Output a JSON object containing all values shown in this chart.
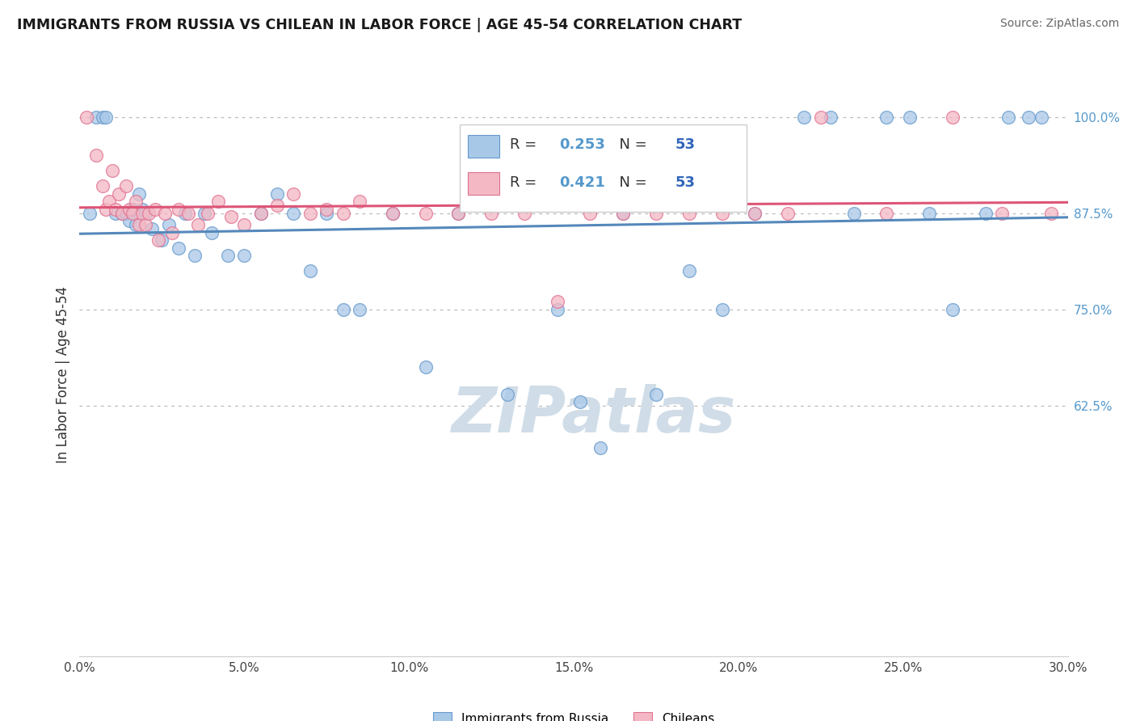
{
  "title": "IMMIGRANTS FROM RUSSIA VS CHILEAN IN LABOR FORCE | AGE 45-54 CORRELATION CHART",
  "source": "Source: ZipAtlas.com",
  "ylabel_label": "In Labor Force | Age 45-54",
  "legend_russia": "Immigrants from Russia",
  "legend_chilean": "Chileans",
  "r_russia": "0.253",
  "n_russia": "53",
  "r_chilean": "0.421",
  "n_chilean": "53",
  "color_russia_fill": "#a8c8e8",
  "color_chilean_fill": "#f4b8c4",
  "color_russia_edge": "#6699cc",
  "color_chilean_edge": "#e07090",
  "color_russia_line": "#5588bb",
  "color_chilean_line": "#dd5577",
  "color_r_text": "#5599cc",
  "color_n_text": "#3366bb",
  "watermark_color": "#d0dde8",
  "xmin": 0.0,
  "xmax": 30.0,
  "ymin": 30.0,
  "ymax": 103.0,
  "yticks": [
    62.5,
    75.0,
    87.5,
    100.0
  ],
  "xticks": [
    0,
    5,
    10,
    15,
    20,
    25,
    30
  ],
  "russia_points": [
    [
      0.3,
      87.5
    ],
    [
      0.5,
      100.0
    ],
    [
      0.7,
      100.0
    ],
    [
      0.8,
      100.0
    ],
    [
      1.1,
      87.5
    ],
    [
      1.3,
      87.5
    ],
    [
      1.4,
      87.5
    ],
    [
      1.5,
      86.5
    ],
    [
      1.6,
      88.0
    ],
    [
      1.7,
      86.0
    ],
    [
      1.8,
      90.0
    ],
    [
      1.9,
      88.0
    ],
    [
      2.0,
      87.5
    ],
    [
      2.2,
      85.5
    ],
    [
      2.5,
      84.0
    ],
    [
      2.7,
      86.0
    ],
    [
      3.0,
      83.0
    ],
    [
      3.2,
      87.5
    ],
    [
      3.5,
      82.0
    ],
    [
      3.8,
      87.5
    ],
    [
      4.0,
      85.0
    ],
    [
      4.5,
      82.0
    ],
    [
      5.0,
      82.0
    ],
    [
      5.5,
      87.5
    ],
    [
      6.0,
      90.0
    ],
    [
      6.5,
      87.5
    ],
    [
      7.0,
      80.0
    ],
    [
      7.5,
      87.5
    ],
    [
      8.0,
      75.0
    ],
    [
      8.5,
      75.0
    ],
    [
      9.5,
      87.5
    ],
    [
      10.5,
      67.5
    ],
    [
      11.5,
      87.5
    ],
    [
      13.0,
      64.0
    ],
    [
      14.5,
      75.0
    ],
    [
      15.2,
      63.0
    ],
    [
      15.8,
      57.0
    ],
    [
      16.5,
      87.5
    ],
    [
      17.5,
      64.0
    ],
    [
      18.5,
      80.0
    ],
    [
      19.5,
      75.0
    ],
    [
      20.5,
      87.5
    ],
    [
      22.0,
      100.0
    ],
    [
      22.8,
      100.0
    ],
    [
      23.5,
      87.5
    ],
    [
      24.5,
      100.0
    ],
    [
      25.2,
      100.0
    ],
    [
      25.8,
      87.5
    ],
    [
      26.5,
      75.0
    ],
    [
      27.5,
      87.5
    ],
    [
      28.2,
      100.0
    ],
    [
      28.8,
      100.0
    ],
    [
      29.2,
      100.0
    ]
  ],
  "chilean_points": [
    [
      0.2,
      100.0
    ],
    [
      0.5,
      95.0
    ],
    [
      0.7,
      91.0
    ],
    [
      0.8,
      88.0
    ],
    [
      0.9,
      89.0
    ],
    [
      1.0,
      93.0
    ],
    [
      1.1,
      88.0
    ],
    [
      1.2,
      90.0
    ],
    [
      1.3,
      87.5
    ],
    [
      1.4,
      91.0
    ],
    [
      1.5,
      88.0
    ],
    [
      1.6,
      87.5
    ],
    [
      1.7,
      89.0
    ],
    [
      1.8,
      86.0
    ],
    [
      1.9,
      87.5
    ],
    [
      2.0,
      86.0
    ],
    [
      2.1,
      87.5
    ],
    [
      2.3,
      88.0
    ],
    [
      2.4,
      84.0
    ],
    [
      2.6,
      87.5
    ],
    [
      2.8,
      85.0
    ],
    [
      3.0,
      88.0
    ],
    [
      3.3,
      87.5
    ],
    [
      3.6,
      86.0
    ],
    [
      3.9,
      87.5
    ],
    [
      4.2,
      89.0
    ],
    [
      4.6,
      87.0
    ],
    [
      5.0,
      86.0
    ],
    [
      5.5,
      87.5
    ],
    [
      6.0,
      88.5
    ],
    [
      6.5,
      90.0
    ],
    [
      7.0,
      87.5
    ],
    [
      7.5,
      88.0
    ],
    [
      8.0,
      87.5
    ],
    [
      8.5,
      89.0
    ],
    [
      9.5,
      87.5
    ],
    [
      10.5,
      87.5
    ],
    [
      11.5,
      87.5
    ],
    [
      12.5,
      87.5
    ],
    [
      13.5,
      87.5
    ],
    [
      14.5,
      76.0
    ],
    [
      15.5,
      87.5
    ],
    [
      16.5,
      87.5
    ],
    [
      17.5,
      87.5
    ],
    [
      18.5,
      87.5
    ],
    [
      19.5,
      87.5
    ],
    [
      20.5,
      87.5
    ],
    [
      21.5,
      87.5
    ],
    [
      22.5,
      100.0
    ],
    [
      24.5,
      87.5
    ],
    [
      26.5,
      100.0
    ],
    [
      28.0,
      87.5
    ],
    [
      29.5,
      87.5
    ]
  ]
}
